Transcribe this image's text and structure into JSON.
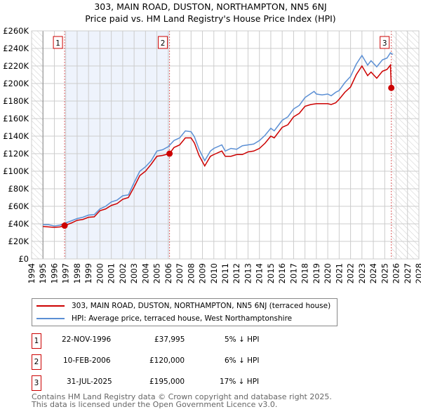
{
  "title_line1": "303, MAIN ROAD, DUSTON, NORTHAMPTON, NN5 6NJ",
  "title_line2": "Price paid vs. HM Land Registry's House Price Index (HPI)",
  "chart_data": {
    "type": "line",
    "ylim": [
      0,
      260000
    ],
    "xlim": [
      1994,
      2028
    ],
    "yticks": [
      0,
      20000,
      40000,
      60000,
      80000,
      100000,
      120000,
      140000,
      160000,
      180000,
      200000,
      220000,
      240000,
      260000
    ],
    "ytick_labels": [
      "£0",
      "£20K",
      "£40K",
      "£60K",
      "£80K",
      "£100K",
      "£120K",
      "£140K",
      "£160K",
      "£180K",
      "£200K",
      "£220K",
      "£240K",
      "£260K"
    ],
    "xticks": [
      1994,
      1995,
      1996,
      1997,
      1998,
      1999,
      2000,
      2001,
      2002,
      2003,
      2004,
      2005,
      2006,
      2007,
      2008,
      2009,
      2010,
      2011,
      2012,
      2013,
      2014,
      2015,
      2016,
      2017,
      2018,
      2019,
      2020,
      2021,
      2022,
      2023,
      2024,
      2025,
      2026,
      2027,
      2028
    ],
    "grid": true,
    "shaded_range": [
      1996.9,
      2006.11
    ],
    "hatched_before": 1995,
    "hatched_after": 2025.6,
    "series": [
      {
        "name": "303, MAIN ROAD, DUSTON, NORTHAMPTON, NN5 6NJ (terraced house)",
        "color": "#cc0000",
        "x": [
          1995,
          1995.5,
          1996,
          1996.5,
          1996.9,
          1997.5,
          1998,
          1998.5,
          1999,
          1999.5,
          2000,
          2000.5,
          2001,
          2001.5,
          2002,
          2002.5,
          2003,
          2003.5,
          2004,
          2004.5,
          2005,
          2005.5,
          2006.11,
          2006.5,
          2007,
          2007.5,
          2008,
          2008.3,
          2008.7,
          2009.2,
          2009.7,
          2010,
          2010.7,
          2011,
          2011.5,
          2012,
          2012.5,
          2013,
          2013.5,
          2014,
          2014.5,
          2015,
          2015.3,
          2016,
          2016.5,
          2017,
          2017.5,
          2018,
          2018.5,
          2019,
          2019.5,
          2020,
          2020.3,
          2020.7,
          2021,
          2021.5,
          2022,
          2022.5,
          2023,
          2023.5,
          2023.8,
          2024.3,
          2024.8,
          2025.2,
          2025.5,
          2025.58
        ],
        "y": [
          37000,
          36500,
          36000,
          36500,
          38000,
          41000,
          44000,
          45000,
          47500,
          48000,
          55000,
          57000,
          61000,
          63000,
          68000,
          70000,
          82000,
          95000,
          100000,
          108000,
          117000,
          118000,
          120000,
          127000,
          130000,
          138000,
          138000,
          132000,
          118000,
          106000,
          117000,
          119000,
          123000,
          117000,
          117000,
          119000,
          119000,
          122000,
          123000,
          126000,
          132000,
          140000,
          138000,
          150000,
          153000,
          162000,
          166000,
          174000,
          176000,
          177000,
          177000,
          177000,
          176000,
          178000,
          182000,
          190000,
          196000,
          210000,
          220000,
          209000,
          213000,
          206000,
          214000,
          216000,
          221000,
          195000
        ]
      },
      {
        "name": "HPI: Average price, terraced house, West Northamptonshire",
        "color": "#5b8fd4",
        "x": [
          1995,
          1995.5,
          1996,
          1996.5,
          1997,
          1997.5,
          1998,
          1998.5,
          1999,
          1999.5,
          2000,
          2000.5,
          2001,
          2001.5,
          2002,
          2002.5,
          2003,
          2003.5,
          2004,
          2004.5,
          2005,
          2005.5,
          2006,
          2006.5,
          2007,
          2007.5,
          2008,
          2008.3,
          2008.7,
          2009.2,
          2009.7,
          2010,
          2010.7,
          2011,
          2011.5,
          2012,
          2012.5,
          2013,
          2013.5,
          2014,
          2014.5,
          2015,
          2015.3,
          2016,
          2016.5,
          2017,
          2017.5,
          2018,
          2018.8,
          2019,
          2019.5,
          2020,
          2020.3,
          2020.7,
          2021,
          2021.5,
          2022,
          2022.5,
          2023,
          2023.5,
          2023.8,
          2024.3,
          2024.8,
          2025.2,
          2025.5,
          2025.7
        ],
        "y": [
          39000,
          39000,
          37500,
          38500,
          41000,
          43500,
          46000,
          47500,
          50000,
          50500,
          57000,
          60000,
          65000,
          67000,
          72000,
          73000,
          87000,
          100000,
          105000,
          112000,
          123000,
          124500,
          128000,
          135000,
          138000,
          146000,
          145000,
          139000,
          125000,
          112000,
          123000,
          126000,
          130000,
          123000,
          126000,
          125000,
          129000,
          130000,
          131000,
          135000,
          141000,
          149000,
          146000,
          158000,
          162000,
          171000,
          175000,
          184000,
          191000,
          188000,
          187000,
          188000,
          186000,
          190000,
          192000,
          201000,
          208000,
          222000,
          232000,
          221000,
          226000,
          219000,
          227000,
          229000,
          235000,
          233000
        ]
      }
    ],
    "sales": [
      {
        "label": "1",
        "x": 1996.9,
        "y": 37995
      },
      {
        "label": "2",
        "x": 2006.11,
        "y": 120000
      },
      {
        "label": "3",
        "x": 2025.58,
        "y": 195000
      }
    ]
  },
  "transactions": [
    {
      "num": "1",
      "date": "22-NOV-1996",
      "price": "£37,995",
      "hpi": "5% ↓ HPI"
    },
    {
      "num": "2",
      "date": "10-FEB-2006",
      "price": "£120,000",
      "hpi": "6% ↓ HPI"
    },
    {
      "num": "3",
      "date": "31-JUL-2025",
      "price": "£195,000",
      "hpi": "17% ↓ HPI"
    }
  ],
  "footer_line1": "Contains HM Land Registry data © Crown copyright and database right 2025.",
  "footer_line2": "This data is licensed under the Open Government Licence v3.0."
}
